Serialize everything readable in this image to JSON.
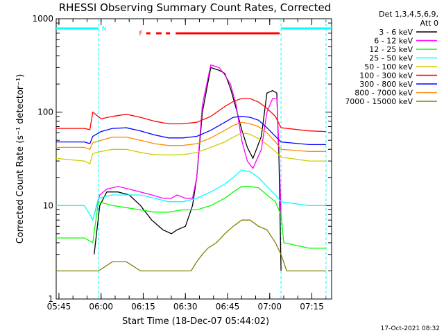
{
  "chart_data": {
    "type": "line",
    "title": "RHESSI Observing Summary Count Rates, Corrected",
    "xlabel": "Start Time (18-Dec-07 05:44:02)",
    "ylabel": "Corrected Count Rate (s⁻¹ detector⁻¹)",
    "yscale": "log",
    "ylim": [
      1,
      1000
    ],
    "xlim_minutes": [
      0,
      98
    ],
    "x_tick_labels": [
      "05:45",
      "06:00",
      "06:15",
      "06:30",
      "06:45",
      "07:00",
      "07:15"
    ],
    "x_tick_minutes": [
      0.97,
      15.97,
      30.97,
      45.97,
      60.97,
      75.97,
      90.97
    ],
    "y_tick_labels": [
      "1",
      "10",
      "100",
      "1000"
    ],
    "y_tick_values": [
      1,
      10,
      100,
      1000
    ],
    "legend_header": [
      "Det 1,3,4,5,6,9,",
      "Att 0"
    ],
    "legend_placement": "right",
    "footer": "17-Oct-2021 08:32",
    "annotations": {
      "N": "N",
      "F": "F"
    },
    "colors": {
      "night_bar": "#00ffff",
      "flare_bar": "#ff0000"
    },
    "night_intervals_minutes": [
      [
        0,
        15
      ],
      [
        80,
        98
      ]
    ],
    "flare_intervals_minutes": [
      [
        32,
        33.5
      ],
      [
        35.5,
        37.5
      ],
      [
        39,
        40.5
      ],
      [
        42.5,
        79.5
      ]
    ],
    "vertical_dashed_lines_minutes": [
      15,
      80,
      96
    ],
    "series": [
      {
        "name": "3 - 6 keV",
        "color": "#000000",
        "x": [
          13.5,
          15.5,
          18,
          22,
          26,
          30,
          34,
          38,
          41,
          43,
          46,
          48.5,
          50,
          52,
          55,
          58,
          60,
          62,
          64,
          66,
          68,
          70,
          73,
          75,
          77,
          78.5,
          79.3,
          80
        ],
        "y": [
          3,
          10,
          14,
          14,
          13,
          10,
          7,
          5.5,
          5,
          5.5,
          6,
          10,
          20,
          100,
          300,
          280,
          260,
          180,
          110,
          65,
          42,
          32,
          55,
          160,
          170,
          160,
          30,
          2
        ]
      },
      {
        "name": "6 - 12 keV",
        "color": "#ff00ff",
        "x": [
          13.5,
          15.5,
          18,
          22,
          26,
          30,
          34,
          38,
          41,
          43,
          46,
          48.5,
          50,
          52,
          55,
          58,
          60,
          62,
          64,
          66,
          68,
          70,
          73,
          75,
          77,
          78.5,
          79.3,
          80
        ],
        "y": [
          8,
          13,
          15,
          16,
          15,
          14,
          13,
          12,
          12,
          13,
          12,
          12,
          20,
          120,
          320,
          300,
          250,
          200,
          120,
          50,
          30,
          25,
          40,
          100,
          140,
          140,
          40,
          8
        ]
      },
      {
        "name": "12 - 25 keV",
        "color": "#00ff00",
        "x": [
          0,
          10,
          13,
          15,
          20,
          25,
          30,
          35,
          40,
          45,
          50,
          55,
          60,
          63,
          66,
          69,
          72,
          75,
          78,
          80,
          81,
          90,
          96
        ],
        "y": [
          4.5,
          4.5,
          4,
          11,
          10,
          9.5,
          9,
          8.5,
          8.5,
          9,
          9,
          10,
          12,
          14,
          16,
          16,
          15.5,
          13,
          11,
          8,
          4,
          3.5,
          3.5
        ]
      },
      {
        "name": "25 - 50 keV",
        "color": "#00ffff",
        "x": [
          0,
          10,
          12,
          13,
          15,
          20,
          25,
          30,
          35,
          40,
          45,
          50,
          55,
          60,
          63,
          66,
          69,
          72,
          75,
          78,
          80,
          90,
          96
        ],
        "y": [
          10,
          10,
          8,
          7,
          12,
          13,
          13,
          13,
          12,
          11,
          11,
          12,
          14,
          17,
          20,
          24,
          23,
          20,
          16,
          13,
          11,
          10,
          10
        ]
      },
      {
        "name": "50 - 100 keV",
        "color": "#cccc00",
        "x": [
          0,
          10,
          12,
          13,
          16,
          20,
          25,
          30,
          35,
          40,
          45,
          50,
          55,
          60,
          63,
          66,
          69,
          72,
          75,
          78,
          80,
          90,
          96
        ],
        "y": [
          32,
          30,
          28,
          36,
          38,
          40,
          40,
          37,
          35,
          35,
          35,
          37,
          42,
          48,
          54,
          60,
          58,
          52,
          45,
          38,
          33,
          30,
          30
        ]
      },
      {
        "name": "100 - 300 keV",
        "color": "#ff0000",
        "x": [
          0,
          10,
          12,
          13,
          16,
          20,
          25,
          30,
          35,
          40,
          45,
          50,
          55,
          60,
          63,
          66,
          69,
          72,
          75,
          78,
          80,
          90,
          96
        ],
        "y": [
          67,
          67,
          65,
          100,
          85,
          90,
          95,
          88,
          80,
          75,
          75,
          78,
          90,
          115,
          130,
          140,
          140,
          128,
          110,
          90,
          68,
          63,
          62
        ]
      },
      {
        "name": "300 - 800 keV",
        "color": "#0000ff",
        "x": [
          0,
          10,
          12,
          13,
          16,
          20,
          25,
          30,
          35,
          40,
          45,
          50,
          55,
          60,
          63,
          66,
          69,
          72,
          75,
          78,
          80,
          90,
          96
        ],
        "y": [
          48,
          48,
          46,
          55,
          62,
          67,
          68,
          63,
          57,
          53,
          53,
          55,
          64,
          78,
          88,
          90,
          88,
          82,
          68,
          55,
          48,
          45,
          45
        ]
      },
      {
        "name": "800 - 7000 keV",
        "color": "#ff8c00",
        "x": [
          0,
          10,
          12,
          13,
          16,
          20,
          25,
          30,
          35,
          40,
          45,
          50,
          55,
          60,
          63,
          66,
          69,
          72,
          75,
          78,
          80,
          90,
          96
        ],
        "y": [
          42,
          42,
          40,
          47,
          50,
          54,
          54,
          50,
          46,
          44,
          44,
          46,
          53,
          64,
          72,
          78,
          75,
          70,
          60,
          48,
          40,
          38,
          38
        ]
      },
      {
        "name": "7000 - 15000 keV",
        "color": "#808000",
        "x": [
          0,
          12,
          15,
          20,
          25,
          30,
          35,
          40,
          45,
          48,
          50,
          52,
          54,
          57,
          60,
          63,
          66,
          69,
          72,
          75,
          78,
          80,
          82,
          90,
          96
        ],
        "y": [
          2,
          2,
          2,
          2.5,
          2.5,
          2,
          2,
          2,
          2,
          2,
          2.5,
          3,
          3.5,
          4,
          5,
          6,
          7,
          7,
          6,
          5.5,
          4,
          3,
          2,
          2,
          2
        ]
      }
    ]
  }
}
